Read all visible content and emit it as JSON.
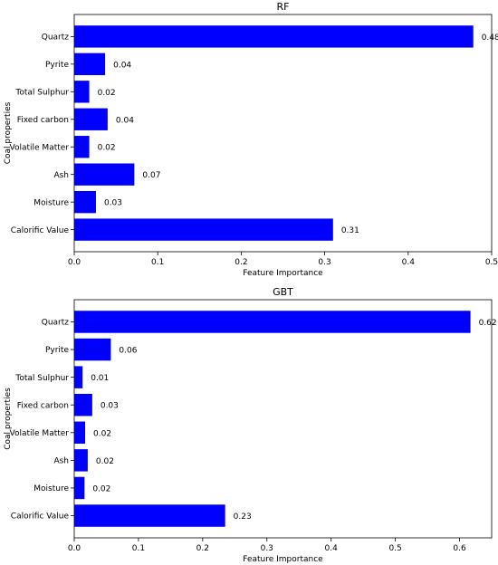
{
  "bar_color": "#0000ff",
  "chart_data": [
    {
      "type": "bar",
      "orientation": "horizontal",
      "title": "RF",
      "xlabel": "Feature Importance",
      "ylabel": "Coal properties",
      "xlim": [
        0,
        0.5
      ],
      "xticks": [
        "0.0",
        "0.1",
        "0.2",
        "0.3",
        "0.4",
        "0.5"
      ],
      "categories": [
        "Calorific Value",
        "Moisture",
        "Ash",
        "Volatile Matter",
        "Fixed carbon",
        "Total Sulphur",
        "Pyrite",
        "Quartz"
      ],
      "values": [
        0.31,
        0.026,
        0.072,
        0.018,
        0.04,
        0.018,
        0.037,
        0.478
      ],
      "data_labels": [
        "0.31",
        "0.03",
        "0.07",
        "0.02",
        "0.04",
        "0.02",
        "0.04",
        "0.48"
      ]
    },
    {
      "type": "bar",
      "orientation": "horizontal",
      "title": "GBT",
      "xlabel": "Feature Importance",
      "ylabel": "Coal properties",
      "xlim": [
        0,
        0.65
      ],
      "xticks": [
        "0.0",
        "0.1",
        "0.2",
        "0.3",
        "0.4",
        "0.5",
        "0.6"
      ],
      "categories": [
        "Calorific Value",
        "Moisture",
        "Ash",
        "Volatile Matter",
        "Fixed carbon",
        "Total Sulphur",
        "Pyrite",
        "Quartz"
      ],
      "values": [
        0.235,
        0.016,
        0.021,
        0.017,
        0.028,
        0.013,
        0.057,
        0.617
      ],
      "data_labels": [
        "0.23",
        "0.02",
        "0.02",
        "0.02",
        "0.03",
        "0.01",
        "0.06",
        "0.62"
      ]
    }
  ]
}
